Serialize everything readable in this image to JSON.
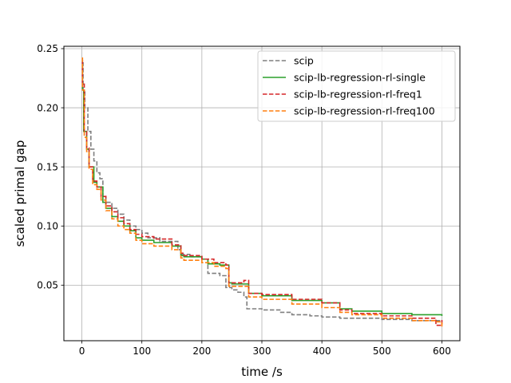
{
  "chart_data": {
    "type": "line",
    "title": "",
    "xlabel": "time /s",
    "ylabel": "scaled primal gap",
    "xlim": [
      -30,
      630
    ],
    "ylim": [
      0.003,
      0.252
    ],
    "xticks": [
      0,
      100,
      200,
      300,
      400,
      500,
      600
    ],
    "yticks": [
      0.05,
      0.1,
      0.15,
      0.2,
      0.25
    ],
    "ytick_labels": [
      "0.05",
      "0.10",
      "0.15",
      "0.20",
      "0.25"
    ],
    "grid": true,
    "legend_position": "top-right",
    "series": [
      {
        "name": "scip",
        "color": "#7f7f7f",
        "dash": "dashed",
        "x": [
          0,
          2,
          5,
          10,
          15,
          20,
          25,
          30,
          35,
          40,
          50,
          60,
          70,
          80,
          90,
          100,
          110,
          130,
          160,
          165,
          180,
          200,
          210,
          230,
          240,
          250,
          260,
          270,
          275,
          300,
          330,
          350,
          380,
          400,
          430,
          460,
          500,
          550,
          600
        ],
        "y": [
          0.238,
          0.215,
          0.2,
          0.18,
          0.165,
          0.155,
          0.145,
          0.14,
          0.125,
          0.12,
          0.115,
          0.11,
          0.105,
          0.1,
          0.097,
          0.094,
          0.09,
          0.087,
          0.08,
          0.076,
          0.074,
          0.072,
          0.06,
          0.058,
          0.048,
          0.046,
          0.044,
          0.04,
          0.03,
          0.029,
          0.027,
          0.025,
          0.024,
          0.023,
          0.022,
          0.022,
          0.021,
          0.02,
          0.019
        ]
      },
      {
        "name": "scip-lb-regression-rl-single",
        "color": "#2ca02c",
        "dash": "solid",
        "x": [
          0,
          1,
          3,
          8,
          12,
          20,
          25,
          35,
          40,
          50,
          60,
          70,
          80,
          90,
          100,
          120,
          150,
          165,
          170,
          200,
          210,
          230,
          245,
          250,
          270,
          278,
          300,
          350,
          400,
          430,
          450,
          500,
          550,
          600
        ],
        "y": [
          0.236,
          0.215,
          0.18,
          0.165,
          0.15,
          0.137,
          0.133,
          0.12,
          0.115,
          0.108,
          0.104,
          0.1,
          0.096,
          0.09,
          0.088,
          0.086,
          0.083,
          0.075,
          0.074,
          0.072,
          0.068,
          0.067,
          0.052,
          0.051,
          0.051,
          0.043,
          0.041,
          0.037,
          0.035,
          0.03,
          0.028,
          0.026,
          0.025,
          0.024
        ]
      },
      {
        "name": "scip-lb-regression-rl-freq1",
        "color": "#d62728",
        "dash": "dashed",
        "x": [
          0,
          1,
          4,
          8,
          12,
          18,
          25,
          32,
          40,
          50,
          60,
          70,
          80,
          90,
          100,
          120,
          150,
          165,
          170,
          200,
          220,
          240,
          245,
          270,
          278,
          300,
          350,
          400,
          430,
          450,
          500,
          550,
          590,
          600
        ],
        "y": [
          0.24,
          0.22,
          0.18,
          0.166,
          0.15,
          0.138,
          0.133,
          0.125,
          0.117,
          0.112,
          0.107,
          0.102,
          0.097,
          0.093,
          0.091,
          0.089,
          0.084,
          0.077,
          0.075,
          0.072,
          0.069,
          0.067,
          0.052,
          0.054,
          0.043,
          0.042,
          0.038,
          0.035,
          0.029,
          0.026,
          0.024,
          0.022,
          0.016,
          0.022
        ]
      },
      {
        "name": "scip-lb-regression-rl-freq100",
        "color": "#ff7f0e",
        "dash": "dashed",
        "x": [
          0,
          1,
          4,
          8,
          12,
          18,
          25,
          32,
          40,
          50,
          60,
          70,
          80,
          90,
          100,
          120,
          150,
          165,
          170,
          200,
          220,
          240,
          245,
          270,
          278,
          300,
          350,
          400,
          430,
          450,
          500,
          550,
          590,
          600
        ],
        "y": [
          0.242,
          0.215,
          0.175,
          0.163,
          0.148,
          0.135,
          0.131,
          0.122,
          0.113,
          0.106,
          0.1,
          0.097,
          0.094,
          0.088,
          0.085,
          0.083,
          0.08,
          0.073,
          0.071,
          0.069,
          0.066,
          0.064,
          0.049,
          0.049,
          0.04,
          0.038,
          0.034,
          0.031,
          0.027,
          0.025,
          0.022,
          0.02,
          0.019,
          0.015
        ]
      }
    ]
  }
}
